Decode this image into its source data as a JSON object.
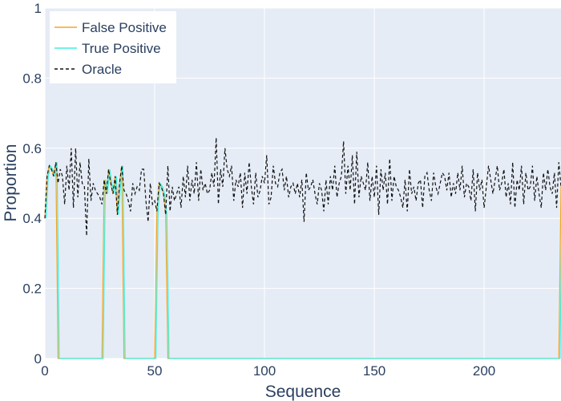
{
  "chart_data": {
    "type": "line",
    "xlabel": "Sequence",
    "ylabel": "Proportion",
    "xlim": [
      0,
      235
    ],
    "ylim": [
      0,
      1
    ],
    "xticks": [
      0,
      50,
      100,
      150,
      200
    ],
    "yticks": [
      0,
      0.2,
      0.4,
      0.6,
      0.8,
      1
    ],
    "ytick_labels": [
      "0",
      "0.2",
      "0.4",
      "0.6",
      "0.8",
      "1"
    ],
    "grid": true,
    "legend_position": "top-left",
    "oracle": [
      0.4,
      0.52,
      0.55,
      0.54,
      0.52,
      0.56,
      0.5,
      0.54,
      0.52,
      0.44,
      0.55,
      0.48,
      0.6,
      0.43,
      0.6,
      0.46,
      0.56,
      0.5,
      0.49,
      0.35,
      0.57,
      0.45,
      0.5,
      0.48,
      0.47,
      0.46,
      0.44,
      0.51,
      0.47,
      0.54,
      0.5,
      0.47,
      0.52,
      0.41,
      0.5,
      0.55,
      0.48,
      0.47,
      0.45,
      0.42,
      0.5,
      0.47,
      0.49,
      0.48,
      0.54,
      0.54,
      0.45,
      0.39,
      0.5,
      0.44,
      0.45,
      0.42,
      0.5,
      0.49,
      0.47,
      0.41,
      0.55,
      0.42,
      0.49,
      0.45,
      0.47,
      0.49,
      0.43,
      0.52,
      0.46,
      0.55,
      0.45,
      0.51,
      0.47,
      0.56,
      0.45,
      0.54,
      0.48,
      0.5,
      0.47,
      0.48,
      0.53,
      0.49,
      0.63,
      0.44,
      0.54,
      0.49,
      0.6,
      0.54,
      0.52,
      0.55,
      0.45,
      0.51,
      0.49,
      0.53,
      0.43,
      0.53,
      0.47,
      0.56,
      0.49,
      0.44,
      0.53,
      0.46,
      0.48,
      0.52,
      0.5,
      0.58,
      0.44,
      0.46,
      0.55,
      0.5,
      0.49,
      0.53,
      0.54,
      0.48,
      0.52,
      0.46,
      0.49,
      0.5,
      0.47,
      0.5,
      0.46,
      0.51,
      0.39,
      0.53,
      0.48,
      0.49,
      0.51,
      0.47,
      0.44,
      0.5,
      0.48,
      0.42,
      0.51,
      0.44,
      0.52,
      0.48,
      0.55,
      0.46,
      0.5,
      0.52,
      0.62,
      0.47,
      0.55,
      0.48,
      0.58,
      0.44,
      0.59,
      0.46,
      0.52,
      0.5,
      0.48,
      0.56,
      0.45,
      0.52,
      0.46,
      0.55,
      0.41,
      0.54,
      0.48,
      0.53,
      0.44,
      0.57,
      0.45,
      0.52,
      0.49,
      0.48,
      0.46,
      0.43,
      0.51,
      0.42,
      0.54,
      0.47,
      0.49,
      0.45,
      0.5,
      0.51,
      0.43,
      0.52,
      0.53,
      0.48,
      0.45,
      0.53,
      0.49,
      0.47,
      0.5,
      0.53,
      0.52,
      0.48,
      0.53,
      0.46,
      0.5,
      0.47,
      0.53,
      0.48,
      0.55,
      0.46,
      0.5,
      0.49,
      0.45,
      0.54,
      0.42,
      0.53,
      0.48,
      0.51,
      0.43,
      0.49,
      0.55,
      0.51,
      0.47,
      0.51,
      0.55,
      0.48,
      0.5,
      0.54,
      0.46,
      0.5,
      0.44,
      0.56,
      0.43,
      0.51,
      0.48,
      0.55,
      0.44,
      0.53,
      0.48,
      0.49,
      0.55,
      0.45,
      0.52,
      0.47,
      0.43,
      0.53,
      0.48,
      0.54,
      0.49,
      0.47,
      0.53,
      0.43,
      0.56,
      0.49,
      0.51,
      0.48
    ],
    "zero_segments": [
      [
        5,
        27
      ],
      [
        35,
        51
      ],
      [
        55,
        235
      ]
    ],
    "series": [
      {
        "name": "False Positive",
        "color": "#f5a623"
      },
      {
        "name": "True Positive",
        "color": "#40f0e0"
      },
      {
        "name": "Oracle",
        "color": "#111111",
        "dash": "4,3"
      }
    ]
  }
}
